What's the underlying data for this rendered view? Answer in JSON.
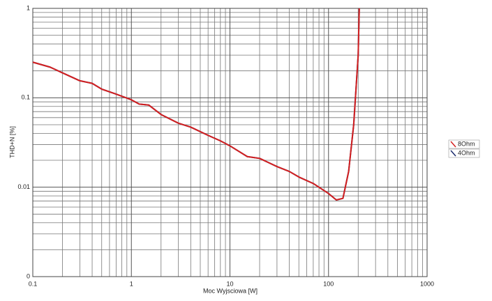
{
  "chart_data": {
    "type": "line",
    "x_label": "Moc Wyjsciowa [W]",
    "y_label": "THD+N [%]",
    "xscale": "log",
    "yscale": "log",
    "grid": true,
    "legend": "right",
    "xlim": [
      0.1,
      1000
    ],
    "xticks": [
      0.1,
      1,
      10,
      100,
      1000
    ],
    "ylim": [
      0.001,
      1
    ],
    "yticks": [
      {
        "value": 0.001,
        "label": "0"
      },
      0.01,
      0.1,
      1
    ],
    "x": [
      0.1,
      0.15,
      0.2,
      0.3,
      0.4,
      0.5,
      0.7,
      1,
      1.2,
      1.5,
      2,
      3,
      4,
      6,
      8,
      10,
      15,
      20,
      30,
      40,
      50,
      70,
      100,
      120,
      140,
      160,
      180,
      200,
      205
    ],
    "series": [
      {
        "name": "4Ohm",
        "color": "#1a2a6c",
        "values": [
          0.25,
          0.22,
          0.19,
          0.155,
          0.145,
          0.125,
          0.11,
          0.095,
          0.085,
          0.083,
          0.065,
          0.052,
          0.047,
          0.038,
          0.033,
          0.029,
          0.022,
          0.021,
          0.017,
          0.015,
          0.013,
          0.011,
          0.0085,
          0.0072,
          0.0075,
          0.015,
          0.05,
          0.3,
          1
        ]
      },
      {
        "name": "8Ohm",
        "color": "#d42020",
        "values": [
          0.25,
          0.22,
          0.19,
          0.155,
          0.145,
          0.125,
          0.11,
          0.095,
          0.085,
          0.083,
          0.065,
          0.052,
          0.047,
          0.038,
          0.033,
          0.029,
          0.022,
          0.021,
          0.017,
          0.015,
          0.013,
          0.011,
          0.0085,
          0.0072,
          0.0075,
          0.015,
          0.05,
          0.3,
          1
        ]
      }
    ]
  }
}
